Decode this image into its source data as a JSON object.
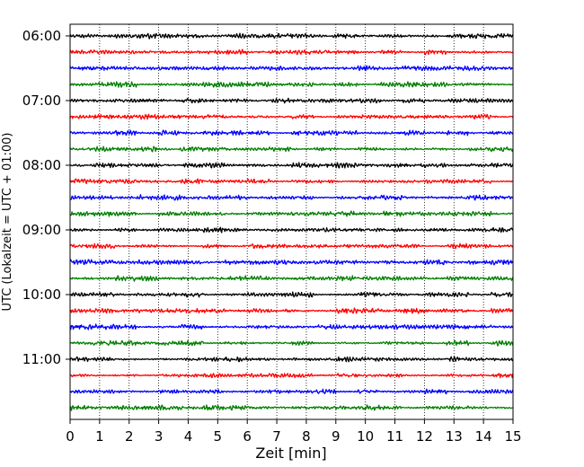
{
  "chart_data": {
    "type": "line",
    "title": "",
    "xlabel": "Zeit  [min]",
    "ylabel": "UTC (Lokalzeit = UTC + 01:00)",
    "xlim": [
      0,
      15
    ],
    "x_ticks": [
      "0",
      "1",
      "2",
      "3",
      "4",
      "5",
      "6",
      "7",
      "8",
      "9",
      "10",
      "11",
      "12",
      "13",
      "14",
      "15"
    ],
    "y_ticks": [
      "06:00",
      "07:00",
      "08:00",
      "09:00",
      "10:00",
      "11:00"
    ],
    "grid": "vertical dotted lines at each minute",
    "legend": "none",
    "traces_per_hour": 4,
    "trace_color_cycle": [
      "#000000",
      "#ff0000",
      "#0000ff",
      "#007f00"
    ],
    "trace_start_times": [
      "06:00",
      "06:15",
      "06:30",
      "06:45",
      "07:00",
      "07:15",
      "07:30",
      "07:45",
      "08:00",
      "08:15",
      "08:30",
      "08:45",
      "09:00",
      "09:15",
      "09:30",
      "09:45",
      "10:00",
      "10:15",
      "10:30",
      "10:45",
      "11:00",
      "11:15",
      "11:30",
      "11:45"
    ]
  }
}
